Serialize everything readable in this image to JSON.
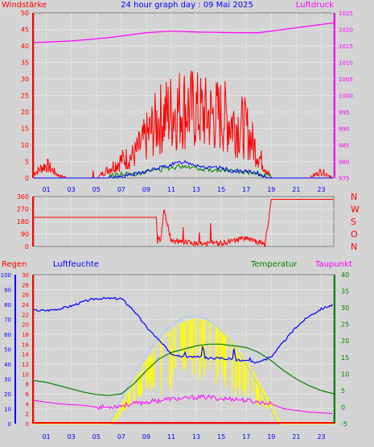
{
  "title": "24 hour graph day : 09 Mai 2025",
  "hour_ticks": [
    "01",
    "03",
    "05",
    "07",
    "09",
    "11",
    "13",
    "15",
    "17",
    "19",
    "21",
    "23"
  ],
  "colors": {
    "wind": "#ff0000",
    "pressure": "#ff00ff",
    "gust": "#ff0000",
    "avg_wind": "#0000ff",
    "wind_green": "#008000",
    "direction": "#ff0000",
    "rain": "#ff0000",
    "humidity": "#0000ff",
    "temperature": "#008000",
    "dewpoint": "#ff00ff",
    "solar": "#ffff00",
    "uv": "#a6caf0",
    "grid": "#ffffff",
    "bg": "#d4d4d4"
  },
  "chart_data": [
    {
      "type": "line",
      "title": "24 hour graph day : 09 Mai 2025",
      "ylabel_left": "Windstärke",
      "ylabel_right": "Luftdruck",
      "yticks_left": [
        0,
        5,
        10,
        15,
        20,
        25,
        30,
        35,
        40,
        45,
        50
      ],
      "yticks_right": [
        975,
        980,
        985,
        990,
        995,
        1000,
        1005,
        1010,
        1015,
        1020,
        1025
      ],
      "ylim_left": [
        0,
        50
      ],
      "ylim_right": [
        975,
        1025
      ],
      "series": [
        {
          "name": "Luftdruck",
          "axis": "right",
          "x": [
            0,
            3,
            6,
            9,
            11,
            13,
            16,
            18,
            20,
            22,
            24
          ],
          "values": [
            1016,
            1016.5,
            1017.5,
            1019,
            1019.5,
            1019.2,
            1019,
            1019,
            1020,
            1021,
            1022
          ]
        },
        {
          "axis": "left",
          "x": [
            0,
            1,
            2,
            3,
            4,
            5,
            6,
            7,
            8,
            9,
            10,
            11,
            12,
            13,
            14,
            15,
            16,
            17,
            18,
            19,
            20,
            21,
            22,
            23,
            24
          ],
          "values": [
            2,
            6,
            1,
            0,
            0,
            0,
            4,
            8,
            10,
            18,
            26,
            30,
            32,
            30,
            28,
            28,
            25,
            22,
            10,
            0,
            0,
            0,
            0,
            3,
            0
          ]
        },
        {
          "axis": "left",
          "x": [
            0,
            6,
            8,
            9,
            10,
            11,
            12,
            13,
            14,
            15,
            16,
            17,
            18,
            19,
            24
          ],
          "values": [
            0,
            0,
            1,
            2,
            3,
            4,
            5,
            4,
            3,
            3,
            2,
            2,
            1,
            0,
            0
          ]
        }
      ]
    },
    {
      "type": "line",
      "ylabel_right_letters": [
        "N",
        "W",
        "S",
        "O",
        "N"
      ],
      "yticks_left": [
        0,
        90,
        180,
        270,
        360
      ],
      "ylim": [
        0,
        360
      ],
      "series": [
        {
          "x": [
            0,
            9.8,
            9.9,
            10.2,
            10.4,
            11,
            12,
            13,
            15,
            17,
            18,
            18.5,
            19,
            24
          ],
          "values": [
            210,
            210,
            25,
            70,
            270,
            40,
            30,
            20,
            25,
            60,
            30,
            10,
            340,
            340
          ]
        }
      ]
    },
    {
      "type": "line",
      "legend": [
        "Regen",
        "Luftfeuchte",
        "Temperatur",
        "Taupunkt"
      ],
      "yticks_rain": [
        0,
        2,
        4,
        6,
        8,
        10,
        12,
        14,
        16,
        18,
        20,
        22,
        24,
        26,
        28,
        30
      ],
      "yticks_humidity": [
        0,
        10,
        20,
        30,
        40,
        50,
        60,
        70,
        80,
        90,
        100
      ],
      "yticks_temperature": [
        -5,
        0,
        5,
        10,
        15,
        20,
        25,
        30,
        35,
        40
      ],
      "ylim_humidity": [
        0,
        100
      ],
      "ylim_temperature": [
        -5,
        40
      ],
      "series": [
        {
          "name": "Luftfeuchte",
          "x": [
            0,
            1,
            2,
            3,
            4,
            5,
            6,
            7,
            8,
            9,
            10,
            11,
            12,
            13,
            14,
            15,
            16,
            17,
            18,
            19,
            20,
            21,
            22,
            23,
            24
          ],
          "values": [
            76,
            76,
            77,
            79,
            82,
            84,
            84,
            84,
            76,
            65,
            56,
            47,
            45,
            45,
            44,
            44,
            43,
            42,
            41,
            45,
            55,
            65,
            72,
            77,
            80
          ]
        },
        {
          "name": "Temperatur",
          "x": [
            0,
            1,
            2,
            3,
            4,
            5,
            6,
            7,
            8,
            9,
            10,
            11,
            12,
            13,
            14,
            15,
            16,
            17,
            18,
            19,
            20,
            21,
            22,
            23,
            24
          ],
          "values": [
            8,
            7.5,
            6.5,
            5.5,
            4.5,
            3.8,
            3.5,
            4,
            7,
            11,
            14.5,
            16.5,
            17.5,
            18.5,
            19,
            19,
            18.5,
            18,
            16.5,
            14,
            11,
            8.5,
            6.5,
            5,
            4
          ]
        },
        {
          "name": "Taupunkt",
          "x": [
            0,
            2,
            4,
            5,
            6,
            7,
            8,
            9,
            10,
            11,
            12,
            13,
            14,
            15,
            16,
            17,
            18,
            19,
            20,
            22,
            24
          ],
          "values": [
            2,
            1,
            0.5,
            0,
            0,
            0.5,
            1,
            1.5,
            2,
            2.5,
            2.5,
            3,
            3,
            2.5,
            2.5,
            2,
            1.5,
            1,
            -0.5,
            -1.5,
            -2
          ]
        },
        {
          "name": "Regen",
          "x": [
            0,
            24
          ],
          "values": [
            0,
            0
          ]
        }
      ]
    }
  ]
}
